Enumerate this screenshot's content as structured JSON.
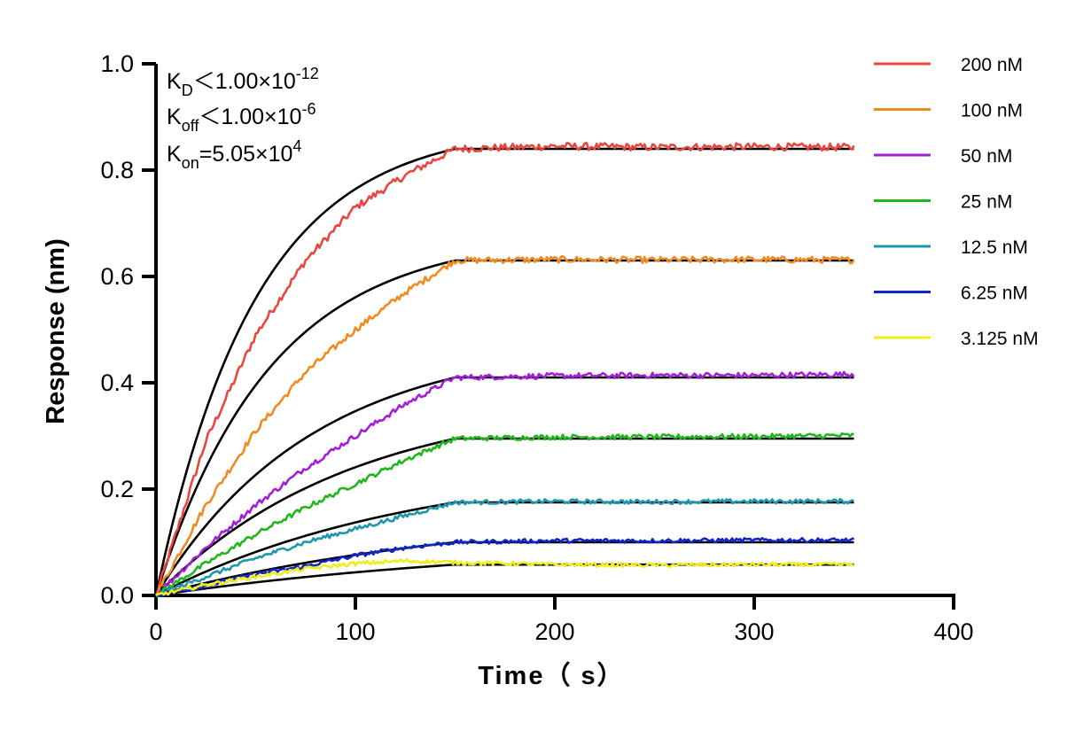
{
  "chart_data": {
    "type": "line",
    "xlabel": "Time（ s）",
    "ylabel": "Response (nm)",
    "xlim": [
      0,
      400
    ],
    "ylim": [
      0,
      1.0
    ],
    "x_ticks": [
      "0",
      "100",
      "200",
      "300",
      "400"
    ],
    "y_ticks": [
      "0.0",
      "0.2",
      "0.4",
      "0.6",
      "0.8",
      "1.0"
    ],
    "association_end": 150,
    "time_end": 350,
    "annotations": {
      "kd_base": "K",
      "kd_sub": "D",
      "kd_rest": "＜1.00×10",
      "kd_exp": "-12",
      "koff_base": "K",
      "koff_sub": "off",
      "koff_rest": "＜1.00×10",
      "koff_exp": "-6",
      "kon_base": "K",
      "kon_sub": "on",
      "kon_rest": "=5.05×10",
      "kon_exp": "4"
    },
    "legend_position": "right",
    "fit_color": "#000000",
    "series": [
      {
        "name": "200 nM",
        "color": "#e8473f",
        "plateau": 0.84,
        "x": [
          0,
          25,
          50,
          75,
          100,
          125,
          150,
          200,
          250,
          300,
          350
        ],
        "y": [
          0,
          0.29,
          0.49,
          0.63,
          0.73,
          0.79,
          0.84,
          0.845,
          0.843,
          0.844,
          0.843
        ]
      },
      {
        "name": "100 nM",
        "color": "#f28a22",
        "plateau": 0.63,
        "x": [
          0,
          25,
          50,
          75,
          100,
          125,
          150,
          200,
          250,
          300,
          350
        ],
        "y": [
          0,
          0.17,
          0.31,
          0.42,
          0.5,
          0.57,
          0.63,
          0.632,
          0.631,
          0.632,
          0.631
        ]
      },
      {
        "name": "50 nM",
        "color": "#a21fd6",
        "plateau": 0.41,
        "x": [
          0,
          25,
          50,
          75,
          100,
          125,
          150,
          200,
          250,
          300,
          350
        ],
        "y": [
          0,
          0.09,
          0.17,
          0.24,
          0.3,
          0.36,
          0.41,
          0.413,
          0.414,
          0.414,
          0.416
        ]
      },
      {
        "name": "25 nM",
        "color": "#21b61e",
        "plateau": 0.295,
        "x": [
          0,
          25,
          50,
          75,
          100,
          125,
          150,
          200,
          250,
          300,
          350
        ],
        "y": [
          0,
          0.06,
          0.115,
          0.165,
          0.21,
          0.255,
          0.295,
          0.298,
          0.298,
          0.299,
          0.301
        ]
      },
      {
        "name": "12.5 nM",
        "color": "#1e98ad",
        "plateau": 0.175,
        "x": [
          0,
          25,
          50,
          75,
          100,
          125,
          150,
          200,
          250,
          300,
          350
        ],
        "y": [
          0,
          0.035,
          0.07,
          0.1,
          0.125,
          0.15,
          0.175,
          0.177,
          0.176,
          0.177,
          0.177
        ]
      },
      {
        "name": "6.25 nM",
        "color": "#1124c8",
        "plateau": 0.1,
        "x": [
          0,
          25,
          50,
          75,
          100,
          125,
          150,
          200,
          250,
          300,
          350
        ],
        "y": [
          0,
          0.018,
          0.04,
          0.055,
          0.075,
          0.09,
          0.1,
          0.103,
          0.103,
          0.104,
          0.104
        ]
      },
      {
        "name": "3.125 nM",
        "color": "#f0ee1a",
        "plateau": 0.058,
        "x": [
          0,
          25,
          50,
          75,
          100,
          125,
          150,
          200,
          250,
          300,
          350
        ],
        "y": [
          0,
          0.02,
          0.035,
          0.05,
          0.06,
          0.065,
          0.062,
          0.058,
          0.057,
          0.058,
          0.058
        ]
      }
    ]
  }
}
